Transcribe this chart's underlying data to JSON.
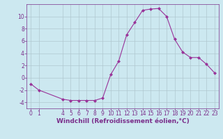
{
  "x": [
    0,
    1,
    4,
    5,
    6,
    7,
    8,
    9,
    10,
    11,
    12,
    13,
    14,
    15,
    16,
    17,
    18,
    19,
    20,
    21,
    22,
    23
  ],
  "y": [
    -1,
    -2,
    -3.5,
    -3.7,
    -3.7,
    -3.7,
    -3.7,
    -3.3,
    0.5,
    2.7,
    7.0,
    9.0,
    11.0,
    11.2,
    11.3,
    10.0,
    6.3,
    4.2,
    3.3,
    3.3,
    2.2,
    0.8
  ],
  "line_color": "#993399",
  "marker": "D",
  "marker_size": 2,
  "xlabel": "Windchill (Refroidissement éolien,°C)",
  "xlim": [
    -0.5,
    23.5
  ],
  "ylim": [
    -5,
    12
  ],
  "yticks": [
    -4,
    -2,
    0,
    2,
    4,
    6,
    8,
    10
  ],
  "xticks": [
    0,
    1,
    4,
    5,
    6,
    7,
    8,
    9,
    10,
    11,
    12,
    13,
    14,
    15,
    16,
    17,
    18,
    19,
    20,
    21,
    22,
    23
  ],
  "bg_color": "#cce8f0",
  "grid_color": "#b0c8d0",
  "line_width": 0.8,
  "tick_color": "#7b2f8b",
  "label_color": "#7b2f8b",
  "font_size": 5.5,
  "xlabel_fontsize": 6.5
}
